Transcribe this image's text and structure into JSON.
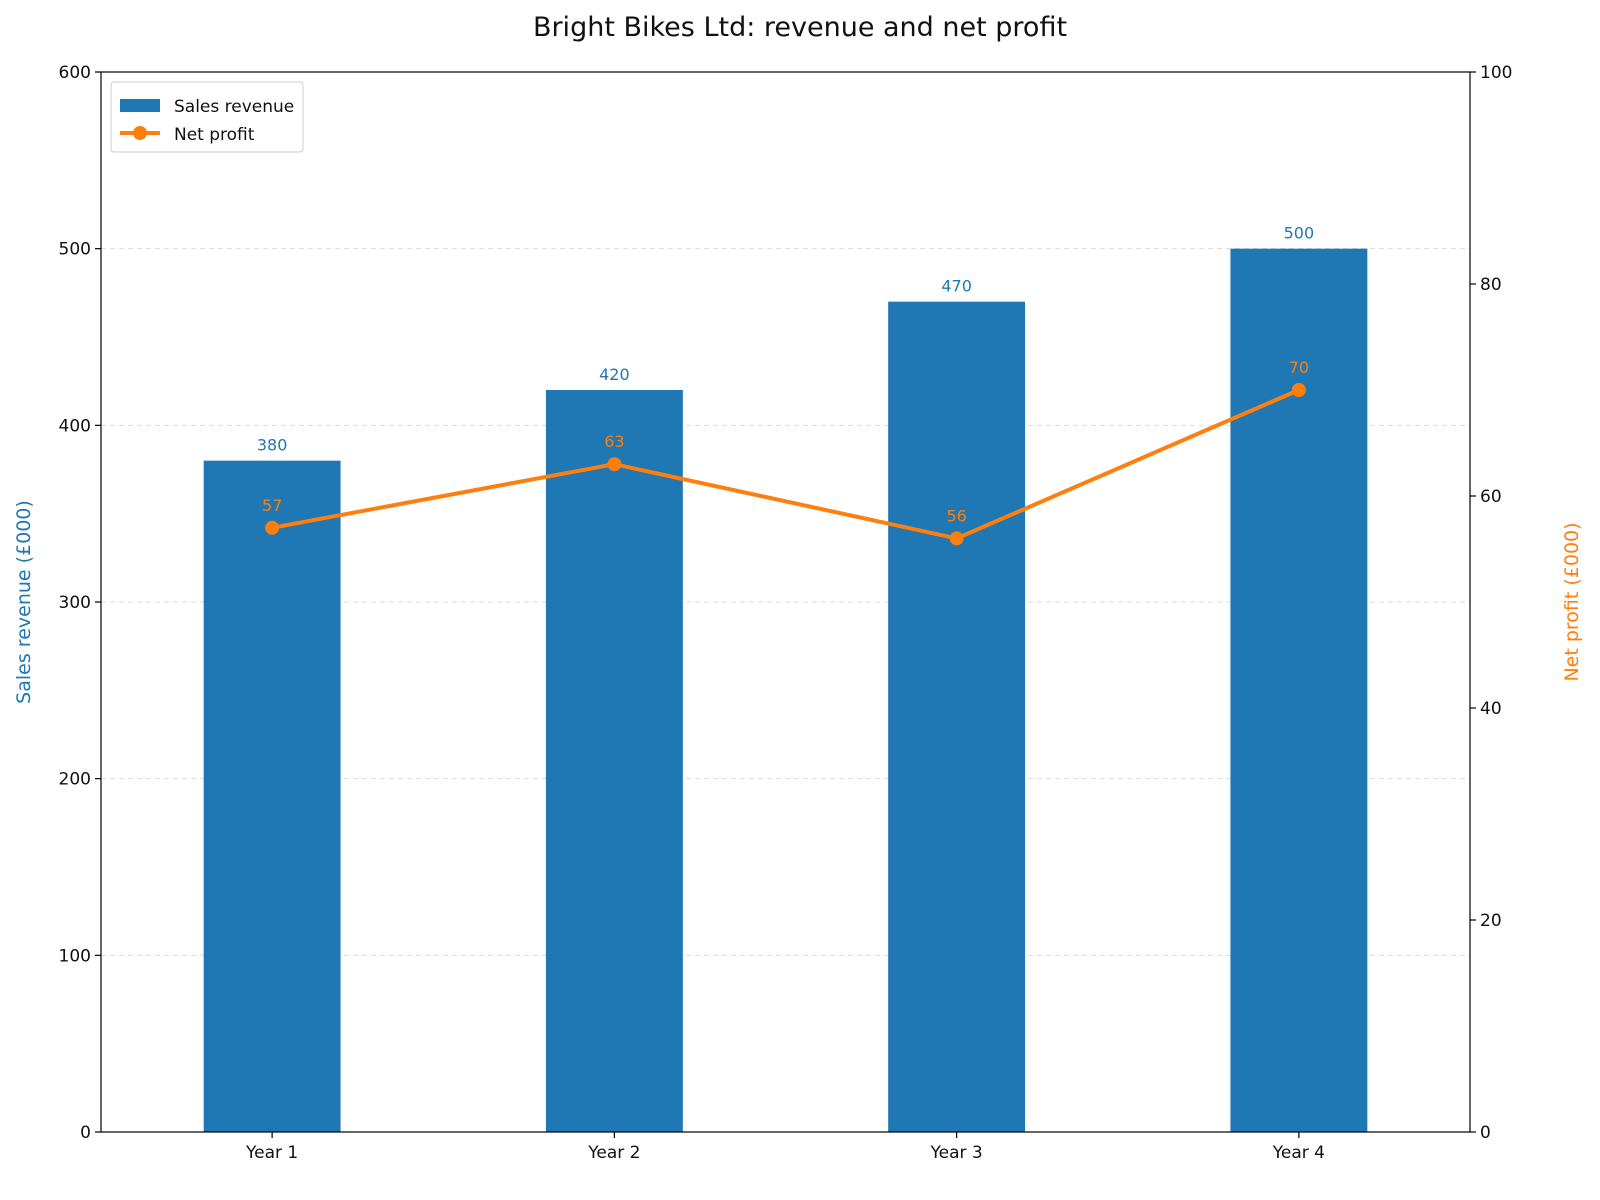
{
  "chart_data": {
    "type": "bar",
    "title": "Bright Bikes Ltd: revenue and net profit",
    "categories": [
      "Year 1",
      "Year 2",
      "Year 3",
      "Year 4"
    ],
    "series": [
      {
        "name": "Sales revenue",
        "type": "bar",
        "axis": "left",
        "color": "#1f77b4",
        "values": [
          380,
          420,
          470,
          500
        ]
      },
      {
        "name": "Net profit",
        "type": "line",
        "axis": "right",
        "color": "#ff7f0e",
        "values": [
          57,
          63,
          56,
          70
        ]
      }
    ],
    "ylabel_left": "Sales revenue (£000)",
    "ylabel_right": "Net profit (£000)",
    "ylim_left": [
      0,
      600
    ],
    "yticks_left": [
      0,
      100,
      200,
      300,
      400,
      500,
      600
    ],
    "ylim_right": [
      0,
      100
    ],
    "yticks_right": [
      0,
      20,
      40,
      60,
      80,
      100
    ],
    "grid": "horizontal dashed",
    "legend_position": "top-left"
  }
}
